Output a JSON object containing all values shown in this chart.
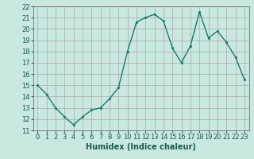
{
  "x": [
    0,
    1,
    2,
    3,
    4,
    5,
    6,
    7,
    8,
    9,
    10,
    11,
    12,
    13,
    14,
    15,
    16,
    17,
    18,
    19,
    20,
    21,
    22,
    23
  ],
  "y": [
    15,
    14.2,
    13,
    12.2,
    11.5,
    12.2,
    12.8,
    13,
    13.8,
    14.8,
    18,
    20.6,
    21,
    21.3,
    20.7,
    18.3,
    17,
    18.5,
    21.5,
    19.2,
    19.8,
    18.8,
    17.5,
    15.5
  ],
  "line_color": "#1a7a6e",
  "marker": ".",
  "xlabel": "Humidex (Indice chaleur)",
  "xlim": [
    -0.5,
    23.5
  ],
  "ylim": [
    11,
    22
  ],
  "yticks": [
    11,
    12,
    13,
    14,
    15,
    16,
    17,
    18,
    19,
    20,
    21,
    22
  ],
  "xticks": [
    0,
    1,
    2,
    3,
    4,
    5,
    6,
    7,
    8,
    9,
    10,
    11,
    12,
    13,
    14,
    15,
    16,
    17,
    18,
    19,
    20,
    21,
    22,
    23
  ],
  "bg_color": "#c8e8e0",
  "grid_color": "#aaaaaa",
  "label_fontsize": 7,
  "tick_fontsize": 6,
  "markersize": 2.5,
  "linewidth": 1.0
}
